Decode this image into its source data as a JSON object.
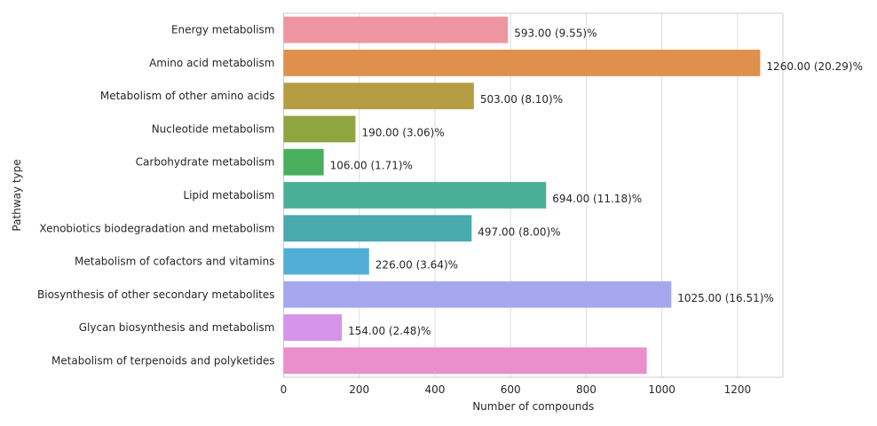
{
  "chart_data": {
    "type": "bar",
    "orientation": "horizontal",
    "title": "",
    "xlabel": "Number of compounds",
    "ylabel": "Pathway type",
    "xlim": [
      0,
      1320
    ],
    "xticks": [
      0,
      200,
      400,
      600,
      800,
      1000,
      1200
    ],
    "grid": true,
    "categories": [
      "Energy metabolism",
      "Amino acid metabolism",
      "Metabolism of other amino acids",
      "Nucleotide metabolism",
      "Carbohydrate metabolism",
      "Lipid metabolism",
      "Xenobiotics biodegradation and metabolism",
      "Metabolism of cofactors and vitamins",
      "Biosynthesis of other secondary metabolites",
      "Glycan biosynthesis and metabolism",
      "Metabolism of terpenoids and polyketides"
    ],
    "values": [
      593,
      1260,
      503,
      190,
      106,
      694,
      497,
      226,
      1025,
      154,
      960
    ],
    "labels": [
      "593.00 (9.55)%",
      "1260.00 (20.29)%",
      "503.00 (8.10)%",
      "190.00 (3.06)%",
      "106.00 (1.71)%",
      "694.00 (11.18)%",
      "497.00 (8.00)%",
      "226.00 (3.64)%",
      "1025.00 (16.51)%",
      "154.00 (2.48)%",
      ""
    ],
    "colors": [
      "#ed96a2",
      "#de904c",
      "#b59d44",
      "#8fa53f",
      "#4bae5c",
      "#4baf97",
      "#4aaaad",
      "#53aed5",
      "#a6a8ee",
      "#d594e8",
      "#ea8fcb"
    ]
  }
}
